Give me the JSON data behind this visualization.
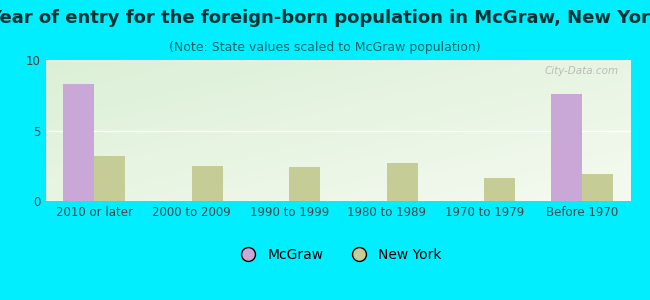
{
  "title": "Year of entry for the foreign-born population in McGraw, New York",
  "subtitle": "(Note: State values scaled to McGraw population)",
  "categories": [
    "2010 or later",
    "2000 to 2009",
    "1990 to 1999",
    "1980 to 1989",
    "1970 to 1979",
    "Before 1970"
  ],
  "mcgraw_values": [
    8.3,
    0,
    0,
    0,
    0,
    7.6
  ],
  "newyork_values": [
    3.2,
    2.5,
    2.4,
    2.7,
    1.6,
    1.9
  ],
  "mcgraw_color": "#c9a8d8",
  "newyork_color": "#c5cc96",
  "background_color": "#00eeff",
  "ylim": [
    0,
    10
  ],
  "yticks": [
    0,
    5,
    10
  ],
  "bar_width": 0.32,
  "watermark": "City-Data.com",
  "legend_mcgraw": "McGraw",
  "legend_newyork": "New York",
  "title_fontsize": 13,
  "subtitle_fontsize": 9,
  "tick_fontsize": 8.5,
  "legend_fontsize": 10
}
